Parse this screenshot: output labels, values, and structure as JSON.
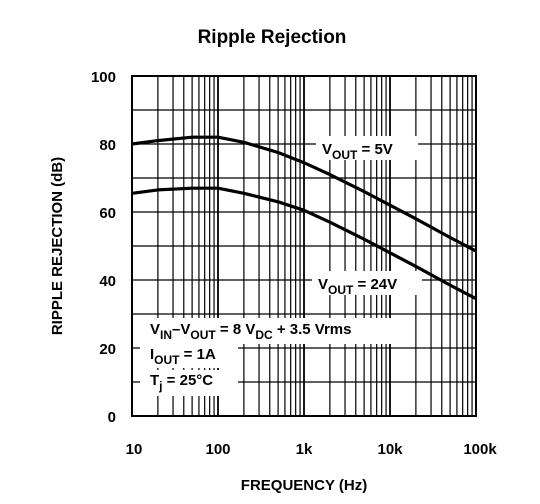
{
  "chart_data": {
    "type": "line",
    "title": "Ripple Rejection",
    "xlabel": "FREQUENCY (Hz)",
    "ylabel": "RIPPLE REJECTION (dB)",
    "xscale": "log",
    "xlim": [
      10,
      100000
    ],
    "ylim": [
      0,
      100
    ],
    "x_tick_labels": [
      "10",
      "100",
      "1k",
      "10k",
      "100k"
    ],
    "x_tick_values": [
      10,
      100,
      1000,
      10000,
      100000
    ],
    "y_ticks": [
      0,
      20,
      40,
      60,
      80,
      100
    ],
    "grid": true,
    "series": [
      {
        "label_main": "V",
        "label_sub": "OUT",
        "label_rest": " = 5V",
        "x": [
          10,
          20,
          50,
          100,
          200,
          500,
          1000,
          2000,
          5000,
          10000,
          20000,
          50000,
          100000
        ],
        "y": [
          80,
          81,
          82,
          82,
          80.5,
          77.5,
          74.5,
          71,
          66,
          62,
          58,
          52.5,
          48.5
        ]
      },
      {
        "label_main": "V",
        "label_sub": "OUT",
        "label_rest": " = 24V",
        "x": [
          10,
          20,
          50,
          100,
          200,
          500,
          1000,
          2000,
          5000,
          10000,
          20000,
          50000,
          100000
        ],
        "y": [
          65.5,
          66.5,
          67,
          67,
          65.5,
          63,
          60.5,
          57,
          52,
          48,
          44,
          38.5,
          34.5
        ]
      }
    ],
    "annotations": {
      "line1": {
        "a": "V",
        "a_sub": "IN",
        "b": "–V",
        "b_sub": "OUT",
        "c": " = 8 V",
        "c_sub": "DC",
        "d": " + 3.5 Vrms"
      },
      "line2": {
        "a": "I",
        "a_sub": "OUT",
        "b": " = 1A"
      },
      "line3": {
        "a": "T",
        "a_sub": "j",
        "b": " = 25°C"
      }
    }
  }
}
